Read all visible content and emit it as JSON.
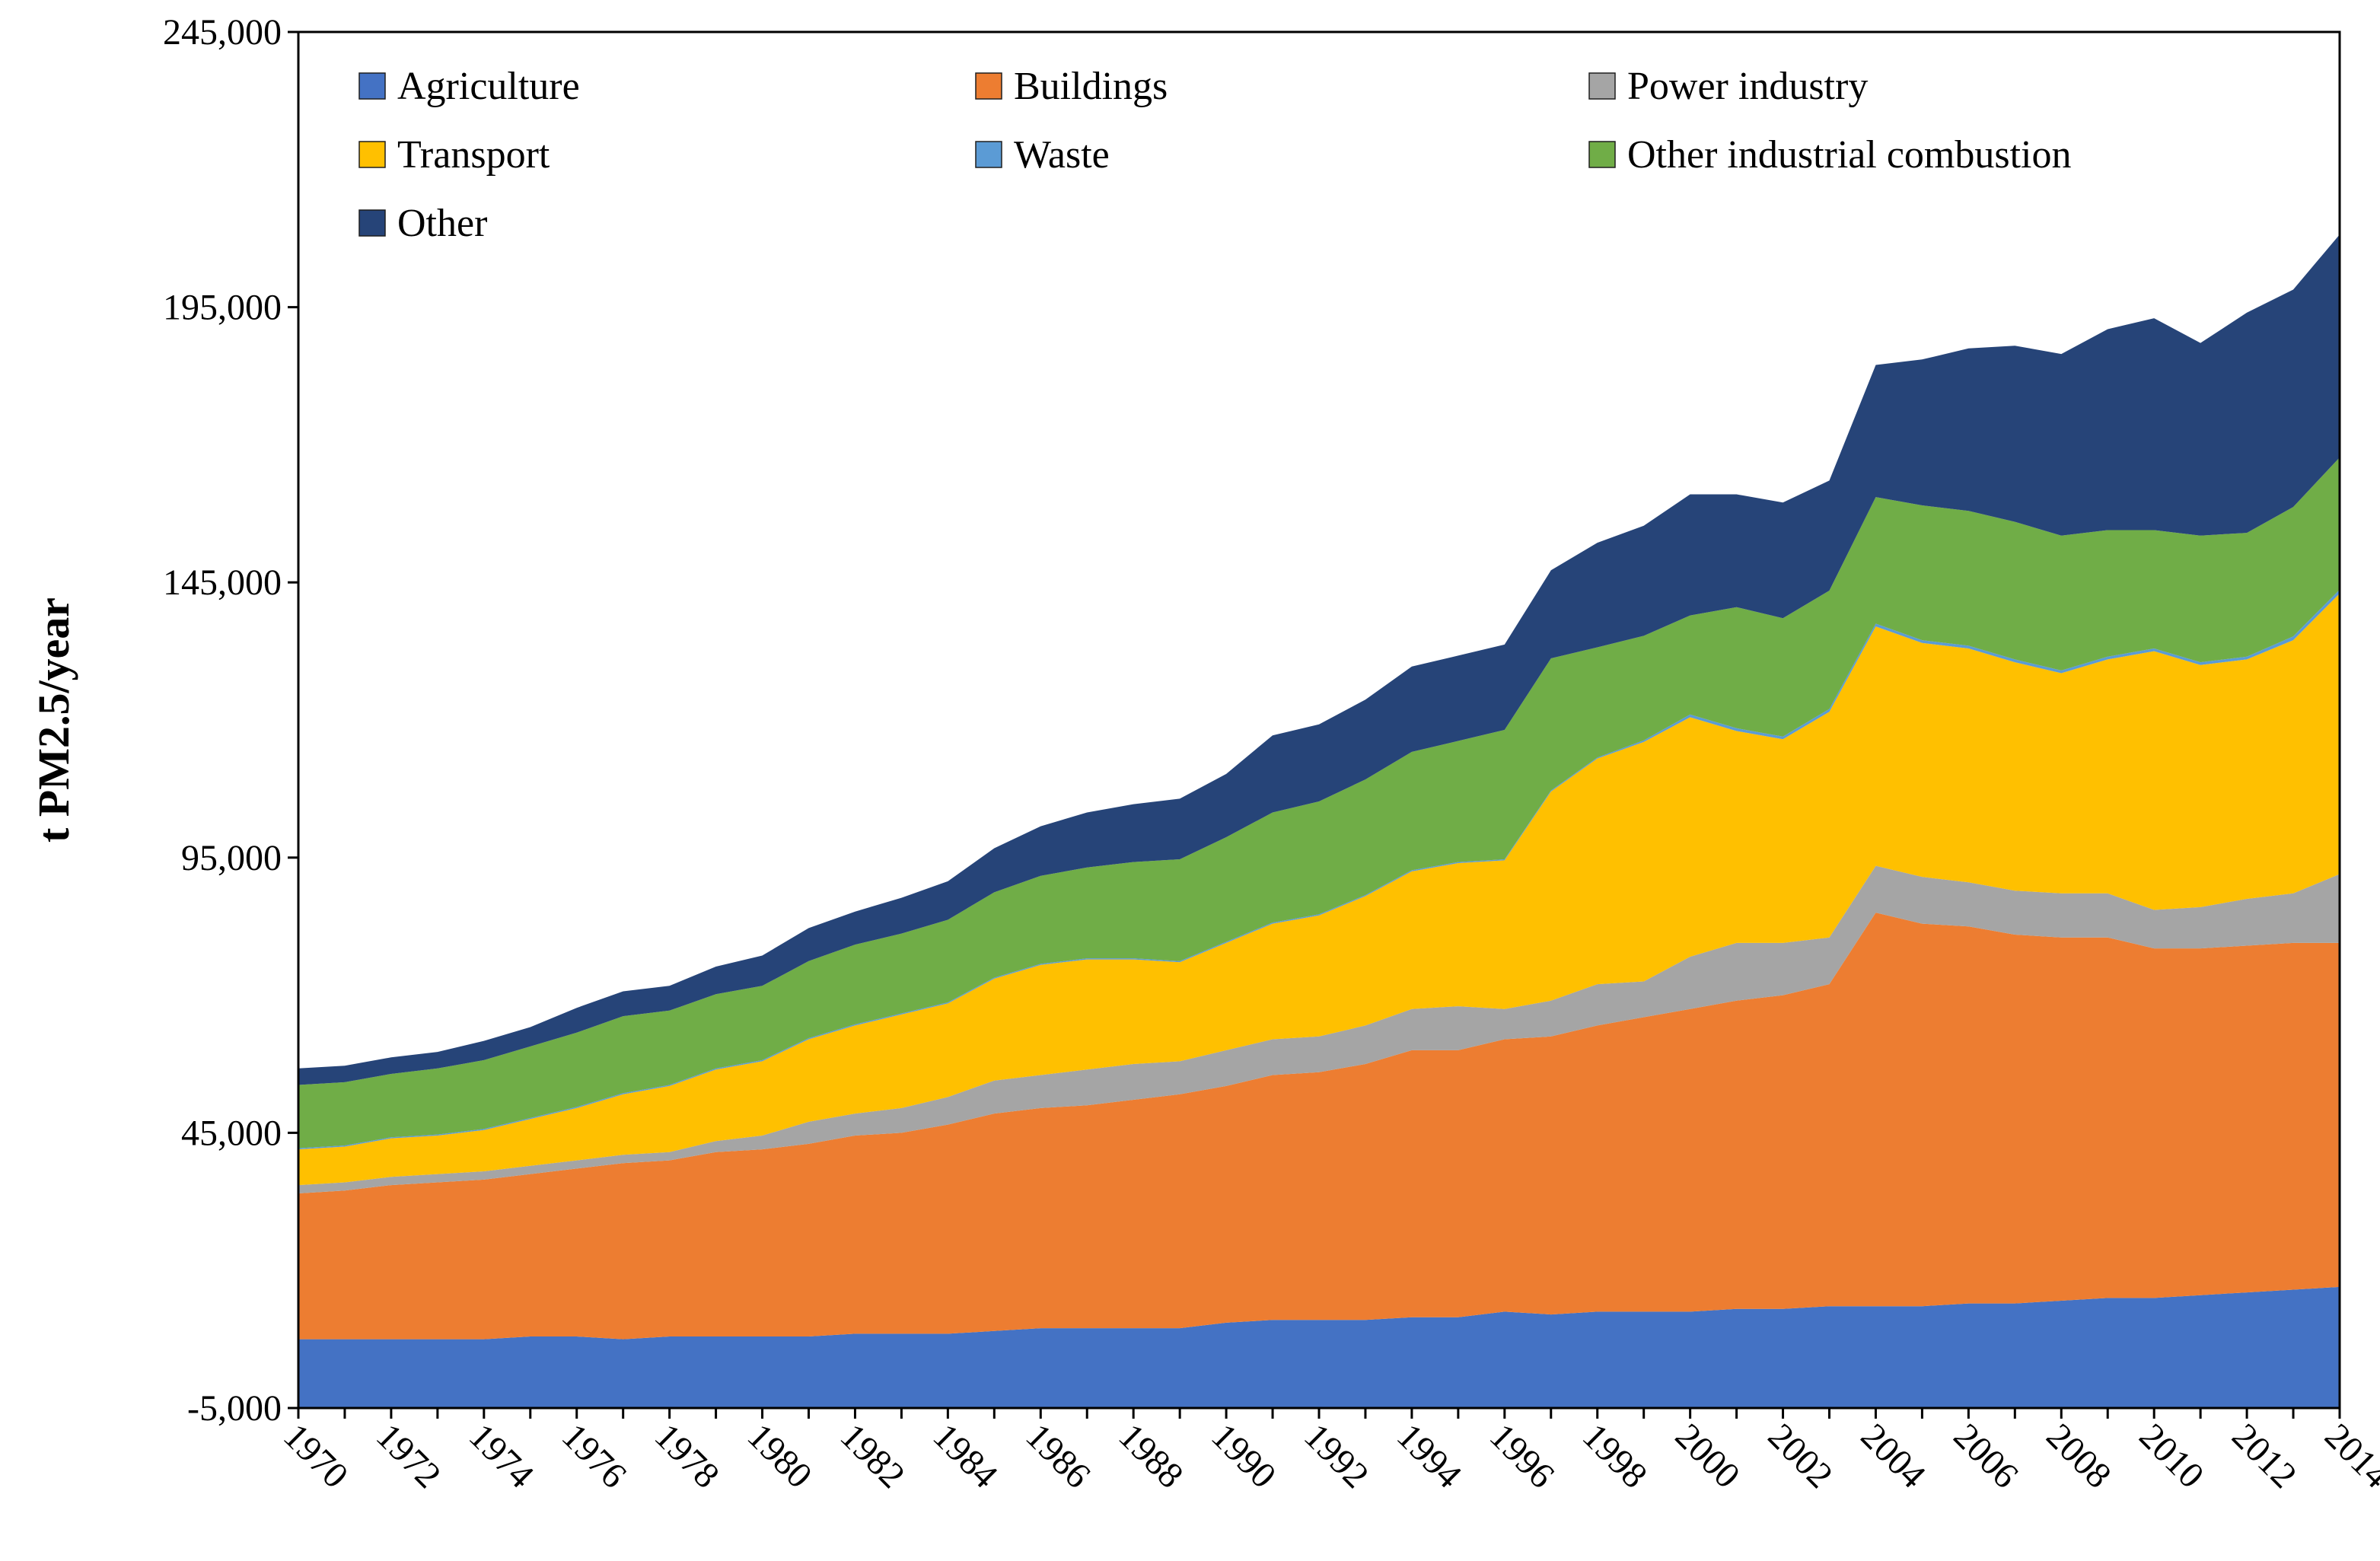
{
  "chart_data": {
    "type": "area",
    "stacked": true,
    "title": "",
    "xlabel": "",
    "ylabel": "t PM2.5/year",
    "ylim": [
      -5000,
      245000
    ],
    "yticks": [
      -5000,
      45000,
      95000,
      145000,
      195000,
      245000
    ],
    "ytick_labels": [
      "-5,000",
      "45,000",
      "95,000",
      "145,000",
      "195,000",
      "245,000"
    ],
    "xtick_labels": [
      "1970",
      "1972",
      "1974",
      "1976",
      "1978",
      "1980",
      "1982",
      "1984",
      "1986",
      "1988",
      "1990",
      "1992",
      "1994",
      "1996",
      "1998",
      "2000",
      "2002",
      "2004",
      "2006",
      "2008",
      "2010",
      "2012",
      "2014"
    ],
    "legend_position": "top-left",
    "x": [
      1970,
      1971,
      1972,
      1973,
      1974,
      1975,
      1976,
      1977,
      1978,
      1979,
      1980,
      1981,
      1982,
      1983,
      1984,
      1985,
      1986,
      1987,
      1988,
      1989,
      1990,
      1991,
      1992,
      1993,
      1994,
      1995,
      1996,
      1997,
      1998,
      1999,
      2000,
      2001,
      2002,
      2003,
      2004,
      2005,
      2006,
      2007,
      2008,
      2009,
      2010,
      2011,
      2012,
      2013,
      2014
    ],
    "series": [
      {
        "name": "Agriculture",
        "color": "#4472C4",
        "values": [
          7500,
          7500,
          7500,
          7500,
          7500,
          8000,
          8000,
          7500,
          8000,
          8000,
          8000,
          8000,
          8500,
          8500,
          8500,
          9000,
          9500,
          9500,
          9500,
          9500,
          10500,
          11000,
          11000,
          11000,
          11500,
          11500,
          12500,
          12000,
          12500,
          12500,
          12500,
          13000,
          13000,
          13500,
          13500,
          13500,
          14000,
          14000,
          14500,
          15000,
          15000,
          15500,
          16000,
          16500,
          17000
        ]
      },
      {
        "name": "Buildings",
        "color": "#ED7D31",
        "values": [
          26500,
          27000,
          28000,
          28500,
          29000,
          29500,
          30500,
          32000,
          32000,
          33500,
          34000,
          35000,
          36000,
          36500,
          38000,
          39500,
          40000,
          40500,
          41500,
          42500,
          43000,
          44500,
          45000,
          46500,
          48500,
          48500,
          49500,
          50500,
          52000,
          53500,
          55000,
          56000,
          57000,
          58500,
          71500,
          69500,
          68500,
          67000,
          66000,
          65500,
          63500,
          63000,
          63000,
          63000,
          62500
        ]
      },
      {
        "name": "Power industry",
        "color": "#A5A5A5",
        "values": [
          1500,
          1500,
          1500,
          1500,
          1500,
          1500,
          1500,
          1500,
          1500,
          2000,
          2500,
          4000,
          4000,
          4500,
          5000,
          6000,
          6000,
          6500,
          6500,
          6000,
          6500,
          6500,
          6500,
          7000,
          7500,
          8000,
          5500,
          6500,
          7500,
          6500,
          9500,
          10500,
          9500,
          8500,
          8500,
          8500,
          8000,
          8000,
          8000,
          8000,
          7000,
          7500,
          8500,
          9000,
          12500
        ]
      },
      {
        "name": "Transport",
        "color": "#FFC000",
        "values": [
          6500,
          6500,
          7000,
          7000,
          7500,
          8500,
          9500,
          11000,
          12000,
          13000,
          13500,
          15000,
          16000,
          17000,
          17000,
          18500,
          20000,
          20000,
          19000,
          18000,
          19500,
          21000,
          22000,
          23500,
          25000,
          26000,
          27000,
          38000,
          41000,
          43500,
          43500,
          38500,
          37000,
          41000,
          43500,
          42500,
          42500,
          41500,
          40000,
          42500,
          47000,
          44000,
          43500,
          46000,
          51000
        ]
      },
      {
        "name": "Waste",
        "color": "#5B9BD5",
        "values": [
          200,
          200,
          200,
          200,
          200,
          200,
          200,
          200,
          200,
          200,
          200,
          200,
          200,
          200,
          200,
          200,
          200,
          200,
          200,
          200,
          200,
          200,
          200,
          200,
          200,
          200,
          200,
          200,
          200,
          300,
          500,
          500,
          500,
          500,
          500,
          500,
          500,
          500,
          500,
          500,
          500,
          500,
          500,
          700,
          700
        ]
      },
      {
        "name": "Other industrial combustion",
        "color": "#70AD47",
        "values": [
          11500,
          11500,
          11500,
          12000,
          12500,
          13000,
          13500,
          14000,
          13500,
          13500,
          13500,
          14000,
          14500,
          14500,
          15000,
          15500,
          16000,
          16500,
          17500,
          18500,
          19000,
          20000,
          20500,
          21000,
          21500,
          22000,
          23500,
          24000,
          20000,
          19000,
          18000,
          22000,
          21500,
          21500,
          23000,
          24500,
          24500,
          25000,
          24500,
          23000,
          21500,
          23000,
          22500,
          23500,
          24000
        ]
      },
      {
        "name": "Other",
        "color": "#264478",
        "values": [
          3000,
          3000,
          3000,
          3000,
          3500,
          3500,
          4500,
          4500,
          4500,
          5000,
          5500,
          6000,
          6000,
          6500,
          7000,
          8000,
          9000,
          10000,
          10500,
          11000,
          11500,
          14000,
          14000,
          14500,
          15500,
          15500,
          15500,
          16000,
          19000,
          20000,
          22000,
          20500,
          21000,
          20000,
          24000,
          26500,
          29500,
          32000,
          33000,
          36500,
          38500,
          35000,
          40000,
          39500,
          40500
        ]
      }
    ]
  },
  "legend": {
    "items": [
      {
        "label": "Agriculture",
        "color": "#4472C4",
        "icon": "legend-swatch-square"
      },
      {
        "label": "Buildings",
        "color": "#ED7D31",
        "icon": "legend-swatch-square"
      },
      {
        "label": "Power industry",
        "color": "#A5A5A5",
        "icon": "legend-swatch-square"
      },
      {
        "label": "Transport",
        "color": "#FFC000",
        "icon": "legend-swatch-square"
      },
      {
        "label": "Waste",
        "color": "#5B9BD5",
        "icon": "legend-swatch-square"
      },
      {
        "label": "Other industrial combustion",
        "color": "#70AD47",
        "icon": "legend-swatch-square"
      },
      {
        "label": "Other",
        "color": "#264478",
        "icon": "legend-swatch-square"
      }
    ]
  }
}
